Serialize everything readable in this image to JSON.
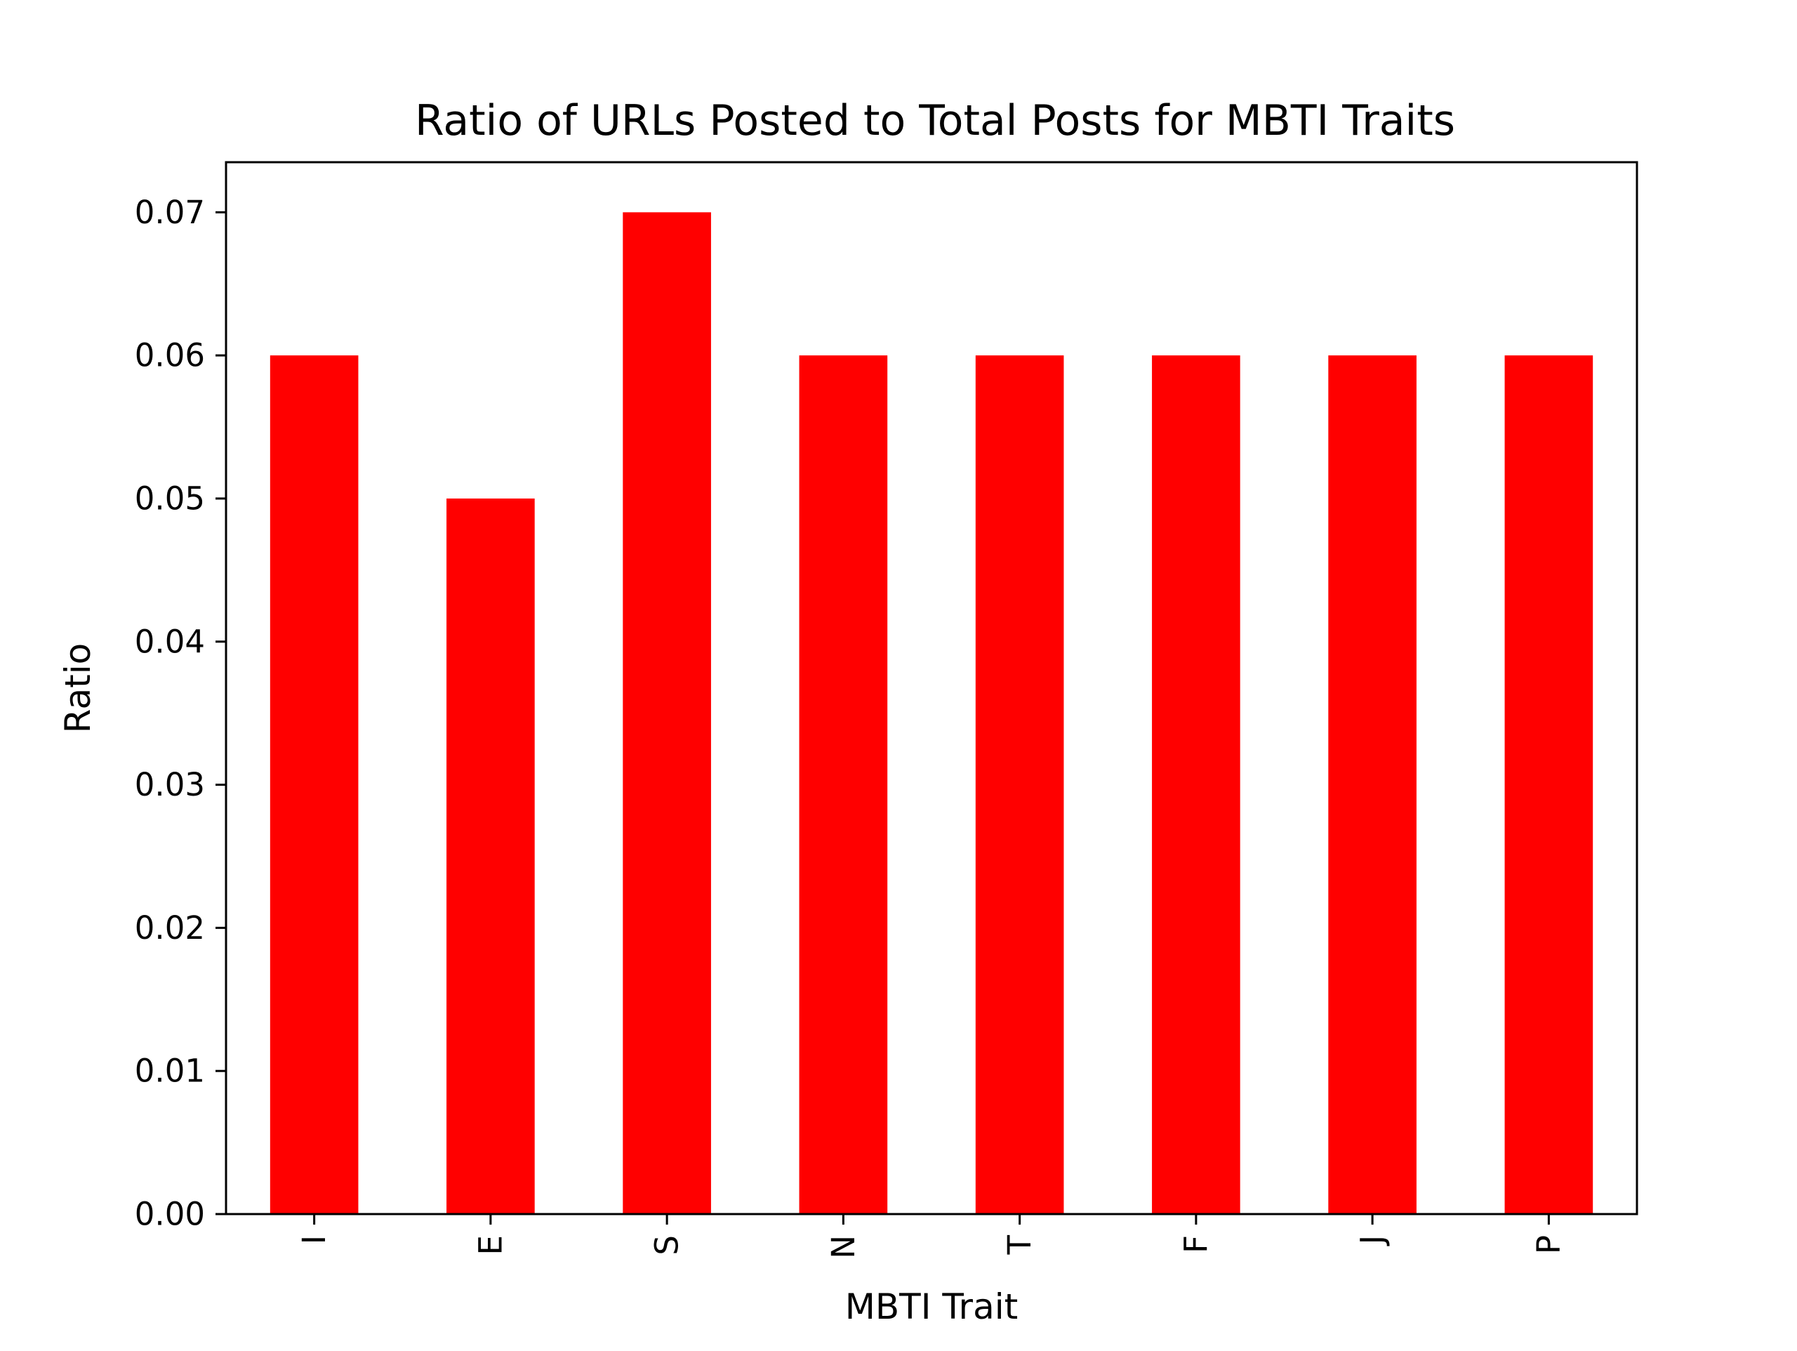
{
  "chart_data": {
    "type": "bar",
    "title": "Ratio of URLs Posted to Total Posts for MBTI Traits",
    "xlabel": "MBTI Trait",
    "ylabel": "Ratio",
    "categories": [
      "I",
      "E",
      "S",
      "N",
      "T",
      "F",
      "J",
      "P"
    ],
    "values": [
      0.06,
      0.05,
      0.07,
      0.06,
      0.06,
      0.06,
      0.06,
      0.06
    ],
    "yticks": [
      "0.00",
      "0.01",
      "0.02",
      "0.03",
      "0.04",
      "0.05",
      "0.06",
      "0.07"
    ],
    "ylim": [
      0,
      0.0735
    ],
    "grid": false,
    "legend": "none",
    "x_tick_rotation": "vertical",
    "bar_color": "#ff0000"
  }
}
